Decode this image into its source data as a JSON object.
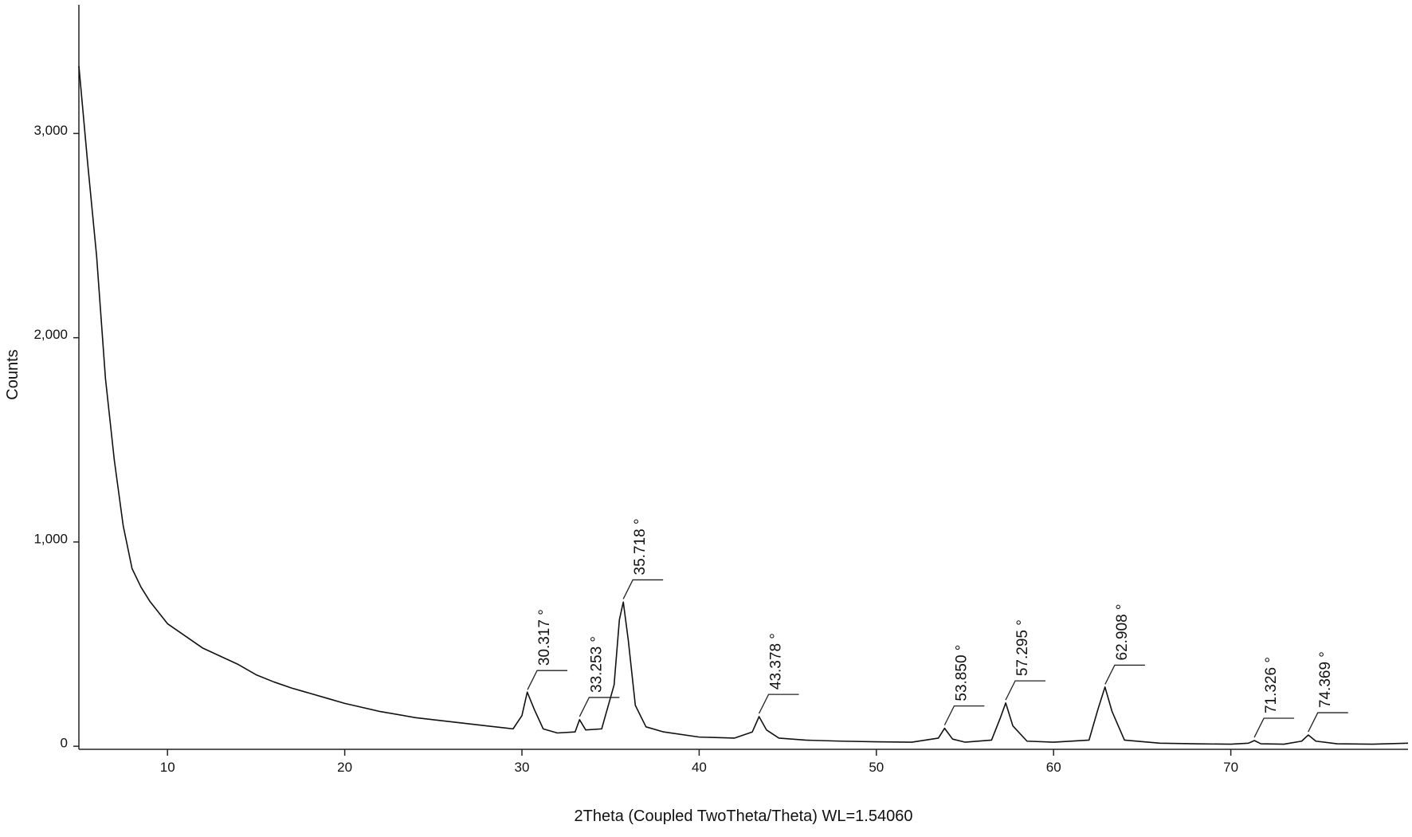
{
  "chart_data": {
    "type": "line",
    "x_label": "2Theta (Coupled TwoTheta/Theta) WL=1.54060",
    "y_label": "Counts",
    "xlim": [
      5,
      80
    ],
    "ylim": [
      -15,
      3630
    ],
    "xticks": [
      10,
      20,
      30,
      40,
      50,
      60,
      70
    ],
    "yticks": [
      0,
      {
        "value": 1000,
        "label": "1,000"
      },
      {
        "value": 2000,
        "label": "2,000"
      },
      {
        "value": 3000,
        "label": "3,000"
      }
    ],
    "series": [
      {
        "color": "#111111",
        "x": [
          5,
          5.5,
          6,
          6.5,
          7,
          7.5,
          8,
          8.5,
          9,
          10,
          11,
          12,
          13,
          14,
          15,
          16,
          17,
          18,
          19,
          20,
          22,
          24,
          26,
          28,
          29.5,
          30,
          30.3,
          30.7,
          31.2,
          32,
          33,
          33.25,
          33.6,
          34.5,
          35.2,
          35.5,
          35.72,
          36,
          36.4,
          37,
          38,
          40,
          42,
          43,
          43.38,
          43.8,
          44.5,
          46,
          48,
          50,
          52,
          53.5,
          53.85,
          54.3,
          55,
          56.5,
          57,
          57.3,
          57.7,
          58.5,
          60,
          62,
          62.5,
          62.9,
          63.3,
          64,
          66,
          68,
          70,
          71,
          71.33,
          71.7,
          73,
          74,
          74.37,
          74.8,
          76,
          78,
          80
        ],
        "values": [
          3330,
          2850,
          2400,
          1800,
          1400,
          1080,
          870,
          780,
          710,
          600,
          540,
          480,
          440,
          400,
          350,
          315,
          285,
          260,
          235,
          210,
          170,
          140,
          120,
          100,
          85,
          150,
          265,
          180,
          85,
          65,
          70,
          130,
          80,
          85,
          300,
          620,
          706,
          520,
          200,
          95,
          70,
          45,
          40,
          70,
          145,
          80,
          40,
          30,
          25,
          22,
          20,
          40,
          88,
          35,
          20,
          30,
          140,
          212,
          100,
          25,
          20,
          30,
          180,
          290,
          170,
          30,
          15,
          12,
          10,
          15,
          28,
          12,
          10,
          25,
          55,
          25,
          12,
          10,
          15
        ]
      }
    ],
    "annotations": [
      {
        "x": 30.317,
        "label": "30.317 °"
      },
      {
        "x": 33.253,
        "label": "33.253 °"
      },
      {
        "x": 35.718,
        "label": "35.718 °"
      },
      {
        "x": 43.378,
        "label": "43.378 °"
      },
      {
        "x": 53.85,
        "label": "53.850 °"
      },
      {
        "x": 57.295,
        "label": "57.295 °"
      },
      {
        "x": 62.908,
        "label": "62.908 °"
      },
      {
        "x": 71.326,
        "label": "71.326 °"
      },
      {
        "x": 74.369,
        "label": "74.369 °"
      }
    ]
  }
}
